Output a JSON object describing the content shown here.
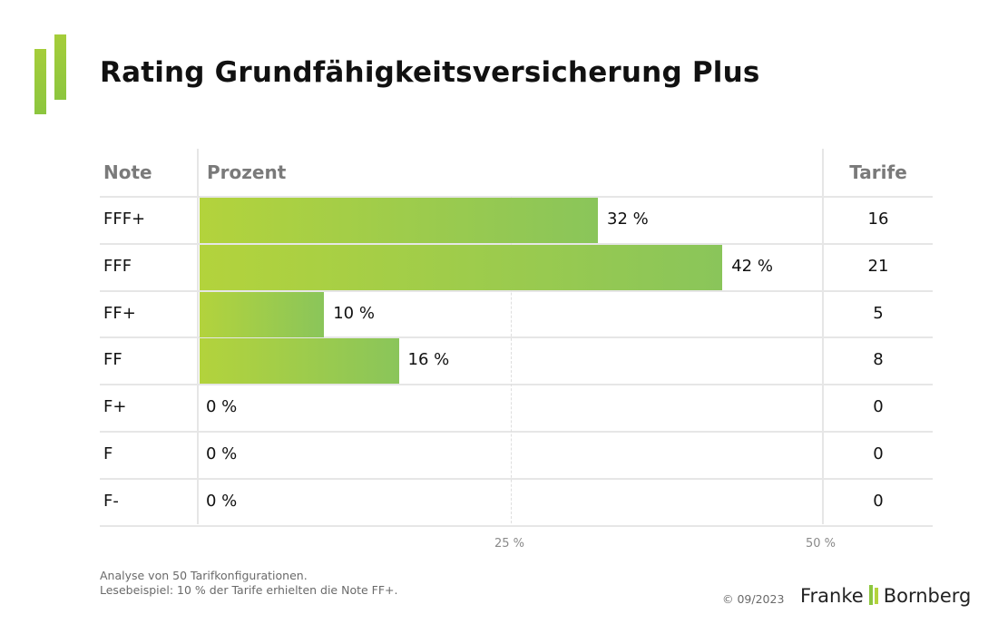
{
  "title": "Rating Grundfähigkeitsversicherung Plus",
  "headers": {
    "note": "Note",
    "percent": "Prozent",
    "tariffs": "Tarife"
  },
  "chart_data": {
    "type": "bar",
    "orientation": "horizontal",
    "categories": [
      "FFF+",
      "FFF",
      "FF+",
      "FF",
      "F+",
      "F",
      "F-"
    ],
    "values": [
      32,
      42,
      10,
      16,
      0,
      0,
      0
    ],
    "value_labels": [
      "32 %",
      "42 %",
      "10 %",
      "16 %",
      "0 %",
      "0 %",
      "0 %"
    ],
    "tarife": [
      "16",
      "21",
      "5",
      "8",
      "0",
      "0",
      "0"
    ],
    "xlim": [
      0,
      50
    ],
    "xticks": [
      25,
      50
    ],
    "xtick_labels": [
      "25 %",
      "50 %"
    ],
    "bar_color_start": "#b3d33c",
    "bar_color_end": "#8ac55a"
  },
  "footnote": {
    "line1": "Analyse von 50 Tarifkonfigurationen.",
    "line2": "Lesebeispiel: 10 % der Tarife erhielten die Note FF+."
  },
  "copyright": "© 09/2023",
  "brand": {
    "left": "Franke",
    "right": "Bornberg"
  }
}
